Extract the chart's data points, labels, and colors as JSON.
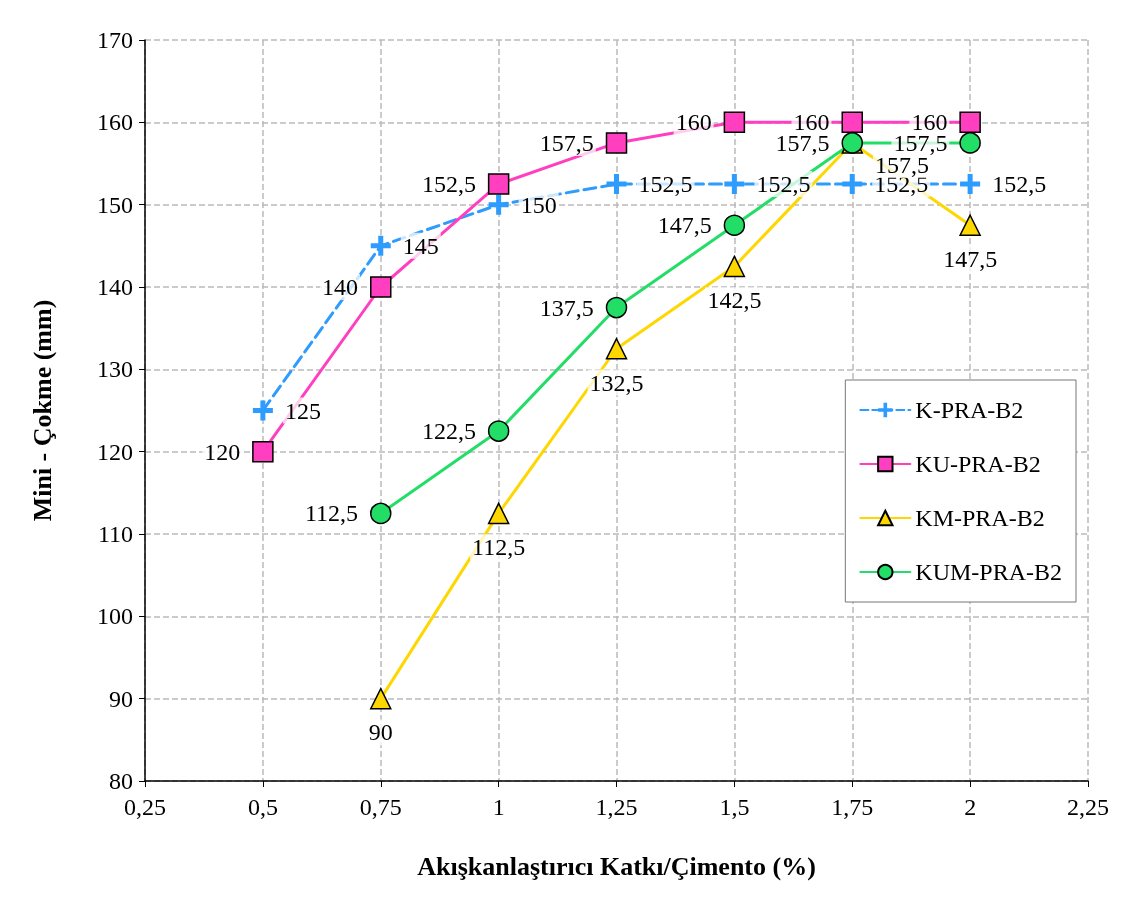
{
  "chart_data": {
    "type": "line",
    "xlabel": "Akışkanlaştırıcı Katkı/Çimento (%)",
    "ylabel": "Mini - Çokme (mm)",
    "xlim": [
      0.25,
      2.25
    ],
    "xticks": [
      {
        "value": 0.25,
        "label": "0,25"
      },
      {
        "value": 0.5,
        "label": "0,5"
      },
      {
        "value": 0.75,
        "label": "0,75"
      },
      1,
      {
        "value": 1.25,
        "label": "1,25"
      },
      {
        "value": 1.5,
        "label": "1,5"
      },
      {
        "value": 1.75,
        "label": "1,75"
      },
      2,
      {
        "value": 2.25,
        "label": "2,25"
      }
    ],
    "ylim": [
      80,
      170
    ],
    "yticks": [
      80,
      90,
      100,
      110,
      120,
      130,
      140,
      150,
      160,
      170
    ],
    "grid": true,
    "legend": "right",
    "series": [
      {
        "name": "K-PRA-B2",
        "color": "#2e9bff",
        "marker": "cross",
        "line_style": "dashed",
        "x": [
          0.5,
          0.75,
          1,
          1.25,
          1.5,
          1.75,
          2
        ],
        "values": [
          125,
          145,
          150,
          152.5,
          152.5,
          152.5,
          152.5
        ],
        "value_labels": [
          "125",
          "145",
          "150",
          "152,5",
          "152,5",
          "152,5",
          "152,5"
        ]
      },
      {
        "name": "KU-PRA-B2",
        "color": "#ff3fbf",
        "marker": "square",
        "line_style": "solid",
        "x": [
          0.5,
          0.75,
          1,
          1.25,
          1.5,
          1.75,
          2
        ],
        "values": [
          120,
          140,
          152.5,
          157.5,
          160,
          160,
          160
        ],
        "value_labels": [
          "120",
          "140",
          "152,5",
          "157,5",
          "160",
          "160",
          "160"
        ]
      },
      {
        "name": "KM-PRA-B2",
        "color": "#ffd700",
        "marker": "triangle",
        "line_style": "solid",
        "x": [
          0.75,
          1,
          1.25,
          1.5,
          1.75,
          2
        ],
        "values": [
          90,
          112.5,
          132.5,
          142.5,
          157.5,
          147.5
        ],
        "value_labels": [
          "90",
          "112,5",
          "132,5",
          "142,5",
          "157,5",
          "147,5"
        ]
      },
      {
        "name": "KUM-PRA-B2",
        "color": "#22dd66",
        "marker": "circle",
        "line_style": "solid",
        "x": [
          0.75,
          1,
          1.25,
          1.5,
          1.75,
          2
        ],
        "values": [
          112.5,
          122.5,
          137.5,
          147.5,
          157.5,
          157.5
        ],
        "value_labels": [
          "112,5",
          "122,5",
          "137,5",
          "147,5",
          "157,5",
          "157,5"
        ]
      }
    ]
  }
}
